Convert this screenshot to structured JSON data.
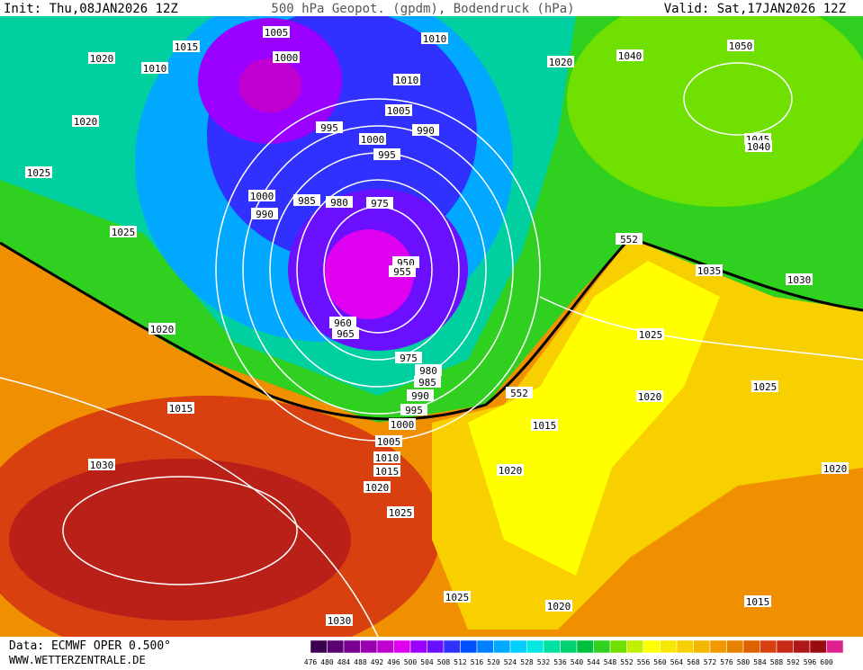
{
  "header": {
    "init": "Init: Thu,08JAN2026 12Z",
    "title": "500 hPa Geopot. (gpdm), Bodendruck (hPa)",
    "valid": "Valid: Sat,17JAN2026 12Z"
  },
  "footer": {
    "data": "Data: ECMWF OPER 0.500°",
    "website": "WWW.WETTERZENTRALE.DE"
  },
  "colorbar": {
    "values": [
      476,
      480,
      484,
      488,
      492,
      496,
      500,
      504,
      508,
      512,
      516,
      520,
      524,
      528,
      532,
      536,
      540,
      544,
      548,
      552,
      556,
      560,
      564,
      568,
      572,
      576,
      580,
      584,
      588,
      592,
      596,
      600
    ],
    "colors": [
      "#3c0050",
      "#5a0070",
      "#7a0090",
      "#9b00b0",
      "#c000d0",
      "#e000f0",
      "#9a00ff",
      "#6a10ff",
      "#3030ff",
      "#0050ff",
      "#0080ff",
      "#00a8ff",
      "#00d0ff",
      "#00e8e0",
      "#00e0a0",
      "#00d070",
      "#00c040",
      "#30d020",
      "#70e000",
      "#c0f000",
      "#ffff00",
      "#f8e800",
      "#f8d000",
      "#f4b800",
      "#f09a00",
      "#e88000",
      "#e06000",
      "#d84010",
      "#c82818",
      "#b01818",
      "#980c10",
      "#e0208c"
    ]
  },
  "isobar_labels": [
    1015,
    1005,
    1000,
    1010,
    1020,
    1010,
    1010,
    1020,
    1040,
    1050,
    1020,
    995,
    1005,
    990,
    1000,
    995,
    1045,
    1040,
    1025,
    1000,
    985,
    980,
    975,
    990,
    1025,
    552,
    950,
    955,
    1035,
    1030,
    960,
    965,
    1020,
    1025,
    975,
    980,
    985,
    1025,
    552,
    990,
    1020,
    1015,
    995,
    1000,
    1015,
    1005,
    1010,
    1030,
    1020,
    1015,
    1020,
    1020,
    1025,
    1025,
    1020,
    1015,
    1030
  ]
}
